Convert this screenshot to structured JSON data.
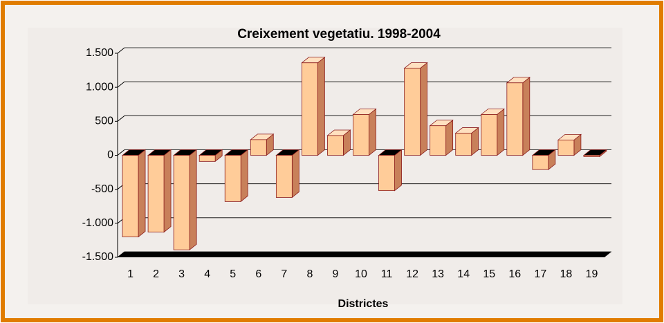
{
  "chart_data": {
    "type": "bar3d",
    "title": "Creixement vegetatiu. 1998-2004",
    "x_label": "Districtes",
    "categories": [
      "1",
      "2",
      "3",
      "4",
      "5",
      "6",
      "7",
      "8",
      "9",
      "10",
      "11",
      "12",
      "13",
      "14",
      "15",
      "16",
      "17",
      "18",
      "19"
    ],
    "values": [
      -1200,
      -1130,
      -1390,
      -90,
      -680,
      230,
      -620,
      1360,
      290,
      600,
      -520,
      1280,
      435,
      325,
      600,
      1065,
      -210,
      225,
      -20
    ],
    "color": "#ffcc99",
    "ylim": [
      -1500,
      1500
    ],
    "yticks": [
      {
        "value": -1500,
        "label": "-1.500"
      },
      {
        "value": -1000,
        "label": "-1.000"
      },
      -500,
      0,
      500,
      {
        "value": 1000,
        "label": "1.000"
      },
      {
        "value": 1500,
        "label": "1.500"
      }
    ],
    "grid": true
  }
}
